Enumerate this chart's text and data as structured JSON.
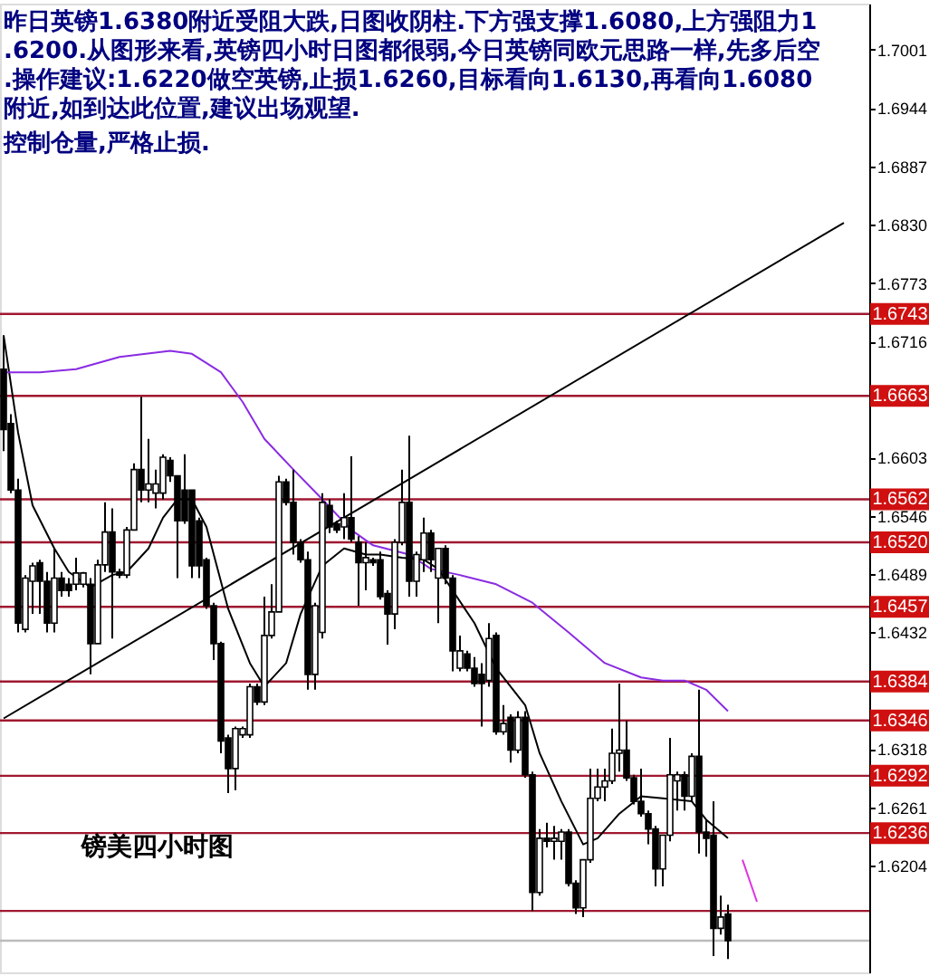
{
  "chart_data": {
    "type": "candlestick",
    "title": "昨日英镑1.6380附近受阻大跌,日图收阴柱.下方强支撑1.6080,上方强阻力1.6200.从图形来看,英镑四小时日图都很弱,今日英镑同欧元思路一样,先多后空.操作建议:1.6220做空英镑,止损1.6260,目标看向1.6130,再看向1.6080附近,如到达此位置,建议出场观望.",
    "subtitle": "控制仓量,严格止损.",
    "annotations": [
      "镑美四小时图"
    ],
    "categories": [
      null,
      null,
      null,
      null,
      null,
      null,
      null,
      null,
      null,
      null,
      null,
      null,
      null,
      null,
      null,
      null,
      null,
      null,
      null,
      null,
      null,
      null,
      null,
      null,
      null,
      null,
      null,
      null,
      null,
      null,
      null,
      null,
      null,
      null,
      null,
      null,
      null,
      null,
      null,
      null,
      null,
      null,
      null,
      null,
      null,
      null,
      null,
      null,
      null,
      null,
      null,
      null,
      null,
      null,
      null,
      null,
      null,
      null,
      null,
      null,
      null,
      null,
      null,
      null,
      null,
      null,
      null,
      null,
      null,
      null,
      null,
      null,
      null,
      null,
      null,
      null,
      null,
      null,
      null,
      null,
      null,
      null,
      null,
      null,
      null,
      null,
      null,
      null,
      null,
      null,
      null,
      null,
      null,
      null,
      null,
      null,
      null,
      null,
      null,
      null,
      null,
      null,
      null,
      null,
      null,
      null,
      null,
      null,
      null,
      null,
      null,
      null,
      null,
      null,
      null,
      null,
      null,
      null,
      null,
      null
    ],
    "ohlc": [
      [
        1.6689,
        1.6722,
        1.6609,
        1.663
      ],
      [
        1.6636,
        1.6645,
        1.6568,
        1.6571
      ],
      [
        1.6571,
        1.6582,
        1.6432,
        1.6441
      ],
      [
        1.6435,
        1.6488,
        1.6432,
        1.6485
      ],
      [
        1.6482,
        1.65,
        1.645,
        1.6497
      ],
      [
        1.65,
        1.6503,
        1.645,
        1.6482
      ],
      [
        1.6482,
        1.6491,
        1.6432,
        1.6441
      ],
      [
        1.6441,
        1.6514,
        1.6432,
        1.6485
      ],
      [
        1.6485,
        1.6491,
        1.6467,
        1.6473
      ],
      [
        1.6479,
        1.6485,
        1.6467,
        1.6473
      ],
      [
        1.6479,
        1.6505,
        1.6473,
        1.649
      ],
      [
        1.6479,
        1.6491,
        1.6476,
        1.649
      ],
      [
        1.6479,
        1.6485,
        1.6391,
        1.6421
      ],
      [
        1.6421,
        1.6503,
        1.6421,
        1.6498
      ],
      [
        1.6498,
        1.6559,
        1.6491,
        1.653
      ],
      [
        1.653,
        1.6553,
        1.6426,
        1.6491
      ],
      [
        1.6491,
        1.6494,
        1.6485,
        1.6488
      ],
      [
        1.6488,
        1.6535,
        1.6485,
        1.6532
      ],
      [
        1.6532,
        1.6597,
        1.6532,
        1.6591
      ],
      [
        1.6591,
        1.6662,
        1.6559,
        1.6571
      ],
      [
        1.6571,
        1.6621,
        1.6559,
        1.6577
      ],
      [
        1.6568,
        1.6591,
        1.6553,
        1.6577
      ],
      [
        1.6568,
        1.6606,
        1.6562,
        1.6603
      ],
      [
        1.66,
        1.6603,
        1.6579,
        1.6585
      ],
      [
        1.6585,
        1.6585,
        1.6485,
        1.6541
      ],
      [
        1.6571,
        1.6606,
        1.6538,
        1.6541
      ],
      [
        1.6571,
        1.6571,
        1.6485,
        1.6497
      ],
      [
        1.6541,
        1.6544,
        1.6485,
        1.6497
      ],
      [
        1.6503,
        1.6505,
        1.6455,
        1.6458
      ],
      [
        1.6458,
        1.6461,
        1.6405,
        1.6421
      ],
      [
        1.6421,
        1.6423,
        1.6314,
        1.6326
      ],
      [
        1.6329,
        1.6332,
        1.6275,
        1.6299
      ],
      [
        1.6299,
        1.634,
        1.6278,
        1.6338
      ],
      [
        1.6332,
        1.634,
        1.6329,
        1.6338
      ],
      [
        1.6332,
        1.6382,
        1.6329,
        1.6379
      ],
      [
        1.6379,
        1.6382,
        1.6361,
        1.6364
      ],
      [
        1.6364,
        1.6467,
        1.6361,
        1.6429
      ],
      [
        1.6429,
        1.6479,
        1.6426,
        1.6452
      ],
      [
        1.6452,
        1.6585,
        1.6452,
        1.6579
      ],
      [
        1.6579,
        1.6582,
        1.6556,
        1.6559
      ],
      [
        1.6559,
        1.6591,
        1.6508,
        1.652
      ],
      [
        1.652,
        1.6523,
        1.65,
        1.6503
      ],
      [
        1.6503,
        1.6511,
        1.6376,
        1.6391
      ],
      [
        1.6391,
        1.6461,
        1.6376,
        1.6458
      ],
      [
        1.6432,
        1.6568,
        1.6426,
        1.6559
      ],
      [
        1.6556,
        1.6562,
        1.6529,
        1.6535
      ],
      [
        1.6538,
        1.6541,
        1.6529,
        1.6532
      ],
      [
        1.6535,
        1.6568,
        1.6523,
        1.6544
      ],
      [
        1.6544,
        1.6604,
        1.652,
        1.6523
      ],
      [
        1.652,
        1.6526,
        1.6458,
        1.65
      ],
      [
        1.65,
        1.652,
        1.6473,
        1.6505
      ],
      [
        1.6503,
        1.6505,
        1.6497,
        1.65
      ],
      [
        1.6503,
        1.6511,
        1.6464,
        1.6467
      ],
      [
        1.647,
        1.6473,
        1.642,
        1.645
      ],
      [
        1.645,
        1.6523,
        1.6435,
        1.652
      ],
      [
        1.652,
        1.6591,
        1.6517,
        1.6559
      ],
      [
        1.6559,
        1.6624,
        1.6467,
        1.6482
      ],
      [
        1.6482,
        1.6511,
        1.6467,
        1.6508
      ],
      [
        1.6503,
        1.6544,
        1.6491,
        1.6529
      ],
      [
        1.6529,
        1.6532,
        1.6491,
        1.6503
      ],
      [
        1.6485,
        1.6514,
        1.6441,
        1.6514
      ],
      [
        1.6514,
        1.6517,
        1.6479,
        1.6485
      ],
      [
        1.6485,
        1.6488,
        1.6394,
        1.6414
      ],
      [
        1.6397,
        1.6429,
        1.6394,
        1.6414
      ],
      [
        1.6411,
        1.6414,
        1.6394,
        1.6397
      ],
      [
        1.6397,
        1.6408,
        1.6379,
        1.6382
      ],
      [
        1.6391,
        1.6402,
        1.634,
        1.6382
      ],
      [
        1.6385,
        1.6441,
        1.6379,
        1.6426
      ],
      [
        1.6429,
        1.6432,
        1.6332,
        1.6335
      ],
      [
        1.6335,
        1.6361,
        1.6332,
        1.6343
      ],
      [
        1.6349,
        1.6352,
        1.6305,
        1.6317
      ],
      [
        1.6317,
        1.6355,
        1.6314,
        1.6349
      ],
      [
        1.6349,
        1.6355,
        1.629,
        1.6293
      ],
      [
        1.6293,
        1.6296,
        1.616,
        1.6178
      ],
      [
        1.6178,
        1.624,
        1.6175,
        1.6231
      ],
      [
        1.6231,
        1.6246,
        1.6222,
        1.6228
      ],
      [
        1.6228,
        1.6243,
        1.621,
        1.6231
      ],
      [
        1.6228,
        1.624,
        1.621,
        1.6237
      ],
      [
        1.6237,
        1.624,
        1.6184,
        1.6187
      ],
      [
        1.6187,
        1.619,
        1.6157,
        1.6163
      ],
      [
        1.6163,
        1.621,
        1.6154,
        1.621
      ],
      [
        1.621,
        1.6299,
        1.6207,
        1.627
      ],
      [
        1.627,
        1.6299,
        1.6267,
        1.6281
      ],
      [
        1.6281,
        1.6299,
        1.6267,
        1.6287
      ],
      [
        1.6287,
        1.6338,
        1.6284,
        1.6314
      ],
      [
        1.6314,
        1.6382,
        1.6296,
        1.6317
      ],
      [
        1.6317,
        1.6346,
        1.6287,
        1.629
      ],
      [
        1.629,
        1.6293,
        1.6264,
        1.6267
      ],
      [
        1.6267,
        1.6299,
        1.6252,
        1.6255
      ],
      [
        1.6255,
        1.6258,
        1.6225,
        1.624
      ],
      [
        1.624,
        1.6243,
        1.6184,
        1.6201
      ],
      [
        1.6201,
        1.6234,
        1.6184,
        1.6234
      ],
      [
        1.6234,
        1.6329,
        1.6228,
        1.6293
      ],
      [
        1.6287,
        1.6296,
        1.6258,
        1.6293
      ],
      [
        1.6293,
        1.6296,
        1.6258,
        1.6272
      ],
      [
        1.6272,
        1.6314,
        1.6267,
        1.6311
      ],
      [
        1.6311,
        1.6376,
        1.6216,
        1.6237
      ],
      [
        1.6237,
        1.6249,
        1.6213,
        1.6231
      ],
      [
        1.6234,
        1.6267,
        1.6116,
        1.6143
      ],
      [
        1.6143,
        1.6175,
        1.6137,
        1.6154
      ],
      [
        1.6157,
        1.6166,
        1.6113,
        1.6131
      ],
      null,
      null,
      null,
      null,
      null,
      null,
      null,
      null,
      null,
      null,
      null,
      null,
      null,
      null,
      null,
      null,
      null,
      null,
      null
    ],
    "series": [
      {
        "type": "line",
        "color": "#000000",
        "values": [
          1.6722,
          null,
          1.6627,
          null,
          1.6556,
          null,
          null,
          1.6514,
          null,
          1.6491,
          null,
          null,
          1.6476,
          null,
          null,
          1.6488,
          null,
          1.6491,
          null,
          null,
          1.6514,
          null,
          1.6544,
          null,
          1.6562,
          null,
          1.6562,
          null,
          1.6535,
          null,
          null,
          1.6455,
          null,
          null,
          1.6402,
          null,
          1.6379,
          null,
          null,
          1.6402,
          null,
          1.645,
          null,
          null,
          1.6497,
          null,
          null,
          1.6514,
          null,
          null,
          1.6508,
          null,
          1.6508,
          null,
          null,
          1.6505,
          null,
          null,
          1.6503,
          null,
          1.6494,
          null,
          null,
          null,
          null,
          1.6441,
          null,
          null,
          1.6397,
          null,
          null,
          null,
          1.6361,
          null,
          1.6314,
          null,
          null,
          1.6267,
          null,
          null,
          1.6225,
          null,
          1.6231,
          null,
          null,
          1.6255,
          null,
          null,
          1.6272,
          null,
          null,
          1.627,
          null,
          null,
          null,
          1.6267,
          null,
          1.6249,
          null,
          null,
          1.6231,
          null,
          null,
          null,
          null,
          null,
          null,
          null,
          null,
          null,
          null,
          null,
          null,
          null,
          null,
          null,
          null,
          null,
          null,
          null
        ]
      },
      {
        "type": "line",
        "color": "#8a2be2",
        "values": [
          1.6686,
          null,
          null,
          null,
          null,
          1.6686,
          null,
          null,
          null,
          null,
          1.6689,
          null,
          null,
          null,
          null,
          null,
          1.6701,
          null,
          null,
          null,
          null,
          null,
          null,
          1.6707,
          null,
          null,
          1.6704,
          null,
          null,
          null,
          1.6686,
          null,
          null,
          1.6657,
          null,
          null,
          1.6621,
          null,
          null,
          null,
          1.6591,
          null,
          null,
          null,
          1.6562,
          null,
          null,
          null,
          1.6532,
          null,
          null,
          1.6517,
          null,
          null,
          null,
          null,
          1.6508,
          null,
          null,
          1.6494,
          null,
          null,
          null,
          1.6488,
          null,
          null,
          null,
          null,
          1.6479,
          null,
          null,
          null,
          null,
          1.6461,
          null,
          null,
          null,
          null,
          1.6432,
          null,
          null,
          null,
          null,
          1.6402,
          null,
          null,
          null,
          null,
          1.6388,
          null,
          null,
          1.6385,
          null,
          null,
          1.6385,
          null,
          null,
          1.6376,
          null,
          null,
          1.6355,
          null,
          null,
          null,
          null,
          null,
          null,
          null,
          null,
          null,
          null,
          null,
          null,
          null,
          null,
          null,
          null,
          null,
          null,
          null
        ]
      },
      {
        "type": "line",
        "color": "#000000",
        "values": [
          1.6348,
          null,
          null,
          null,
          null,
          null,
          null,
          null,
          null,
          null,
          null,
          null,
          null,
          null,
          null,
          null,
          null,
          null,
          null,
          null,
          null,
          null,
          null,
          null,
          null,
          null,
          null,
          null,
          null,
          null,
          null,
          null,
          null,
          null,
          null,
          null,
          null,
          null,
          null,
          null,
          null,
          null,
          null,
          null,
          null,
          null,
          null,
          null,
          null,
          null,
          null,
          null,
          null,
          null,
          null,
          null,
          null,
          null,
          null,
          null,
          null,
          null,
          null,
          null,
          null,
          null,
          null,
          null,
          null,
          null,
          null,
          null,
          null,
          null,
          null,
          null,
          null,
          null,
          null,
          null,
          null,
          null,
          null,
          null,
          null,
          null,
          null,
          null,
          null,
          null,
          null,
          null,
          null,
          null,
          null,
          null,
          null,
          null,
          null,
          null,
          null,
          null,
          null,
          null,
          null,
          null,
          null,
          null,
          null,
          null,
          null,
          null,
          null,
          null,
          null,
          null,
          1.6832,
          null,
          null,
          null
        ]
      },
      {
        "type": "line",
        "color": "#e033e0",
        "values": [
          null,
          null,
          null,
          null,
          null,
          null,
          null,
          null,
          null,
          null,
          null,
          null,
          null,
          null,
          null,
          null,
          null,
          null,
          null,
          null,
          null,
          null,
          null,
          null,
          null,
          null,
          null,
          null,
          null,
          null,
          null,
          null,
          null,
          null,
          null,
          null,
          null,
          null,
          null,
          null,
          null,
          null,
          null,
          null,
          null,
          null,
          null,
          null,
          null,
          null,
          null,
          null,
          null,
          null,
          null,
          null,
          null,
          null,
          null,
          null,
          null,
          null,
          null,
          null,
          null,
          null,
          null,
          null,
          null,
          null,
          null,
          null,
          null,
          null,
          null,
          null,
          null,
          null,
          null,
          null,
          null,
          null,
          null,
          null,
          null,
          null,
          null,
          null,
          null,
          null,
          null,
          null,
          null,
          null,
          null,
          null,
          null,
          null,
          null,
          null,
          null,
          null,
          1.621,
          null,
          1.6169,
          null,
          null,
          null,
          null,
          null,
          null,
          null,
          null,
          null,
          null,
          null,
          null,
          null,
          null,
          null
        ]
      }
    ],
    "ylim": [
      1.61,
      1.7046
    ],
    "yticks": [
      1.7001,
      1.6944,
      1.6887,
      {
        "value": 1.683,
        "label": "1.6830"
      },
      1.6773,
      1.6716,
      1.6603,
      1.6546,
      1.6489,
      1.6432,
      1.6318,
      1.6261,
      1.6204
    ],
    "ref_lines": [
      {
        "axis": "y",
        "value": 1.6743,
        "label": "1.6743",
        "color": "#a01830"
      },
      {
        "axis": "y",
        "value": 1.6663,
        "label": "1.6663",
        "color": "#a01830"
      },
      {
        "axis": "y",
        "value": 1.6562,
        "label": "1.6562",
        "color": "#a01830"
      },
      {
        "axis": "y",
        "value": 1.652,
        "label": "1.6520",
        "color": "#a01830"
      },
      {
        "axis": "y",
        "value": 1.6457,
        "label": "1.6457",
        "color": "#a01830"
      },
      {
        "axis": "y",
        "value": 1.6384,
        "label": "1.6384",
        "color": "#a01830"
      },
      {
        "axis": "y",
        "value": 1.6346,
        "label": "1.6346",
        "color": "#a01830"
      },
      {
        "axis": "y",
        "value": 1.6292,
        "label": "1.6292",
        "color": "#a01830"
      },
      {
        "axis": "y",
        "value": 1.6236,
        "label": "1.6236",
        "color": "#a01830"
      },
      {
        "axis": "y",
        "value": 1.616,
        "color": "#a01830"
      },
      {
        "axis": "y",
        "value": 1.6131,
        "color": "#bbbbbb"
      }
    ],
    "tick_labels": "y",
    "grid": false
  }
}
